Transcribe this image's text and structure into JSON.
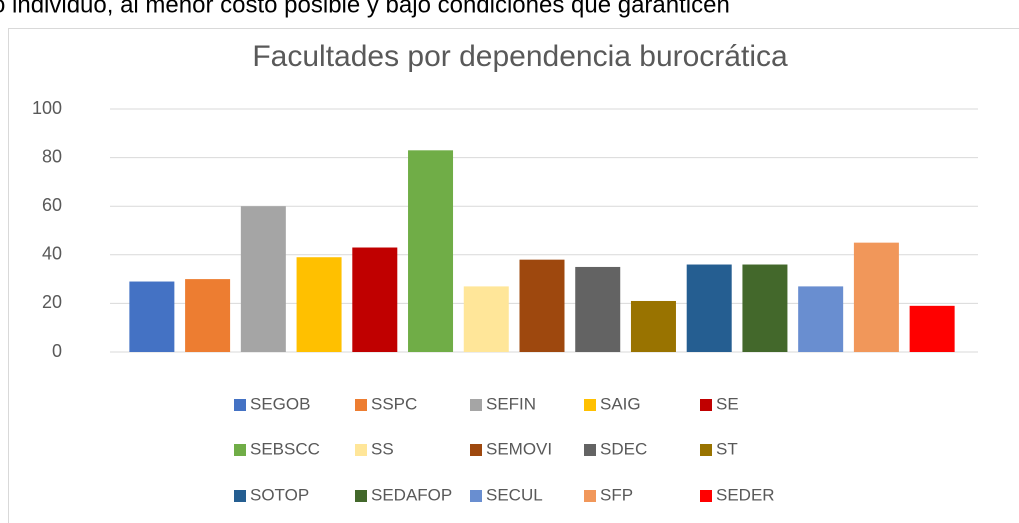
{
  "document_text": "o individuo, al menor costo posible y bajo condiciones que garanticen",
  "chart_data": {
    "type": "bar",
    "title": "Facultades por dependencia burocrática",
    "ylim": [
      0,
      100
    ],
    "yticks": [
      0,
      20,
      40,
      60,
      80,
      100
    ],
    "grid": true,
    "series": [
      {
        "name": "SEGOB",
        "color": "#4472c4",
        "values": [
          29
        ]
      },
      {
        "name": "SSPC",
        "color": "#ed7d31",
        "values": [
          30
        ]
      },
      {
        "name": "SEFIN",
        "color": "#a5a5a5",
        "values": [
          60
        ]
      },
      {
        "name": "SAIG",
        "color": "#ffc000",
        "values": [
          39
        ]
      },
      {
        "name": "SE",
        "color": "#c00000",
        "values": [
          43
        ]
      },
      {
        "name": "SEBSCC",
        "color": "#70ad47",
        "values": [
          83
        ]
      },
      {
        "name": "SS",
        "color": "#ffe699",
        "values": [
          27
        ]
      },
      {
        "name": "SEMOVI",
        "color": "#9e480e",
        "values": [
          38
        ]
      },
      {
        "name": "SDEC",
        "color": "#636363",
        "values": [
          35
        ]
      },
      {
        "name": "ST",
        "color": "#997300",
        "values": [
          21
        ]
      },
      {
        "name": "SOTOP",
        "color": "#255e91",
        "values": [
          36
        ]
      },
      {
        "name": "SEDAFOP",
        "color": "#43682b",
        "values": [
          36
        ]
      },
      {
        "name": "SECUL",
        "color": "#698ed0",
        "values": [
          27
        ]
      },
      {
        "name": "SFP",
        "color": "#f1975a",
        "values": [
          45
        ]
      },
      {
        "name": "SEDER",
        "color": "#ff0000",
        "values": [
          19
        ]
      }
    ]
  }
}
